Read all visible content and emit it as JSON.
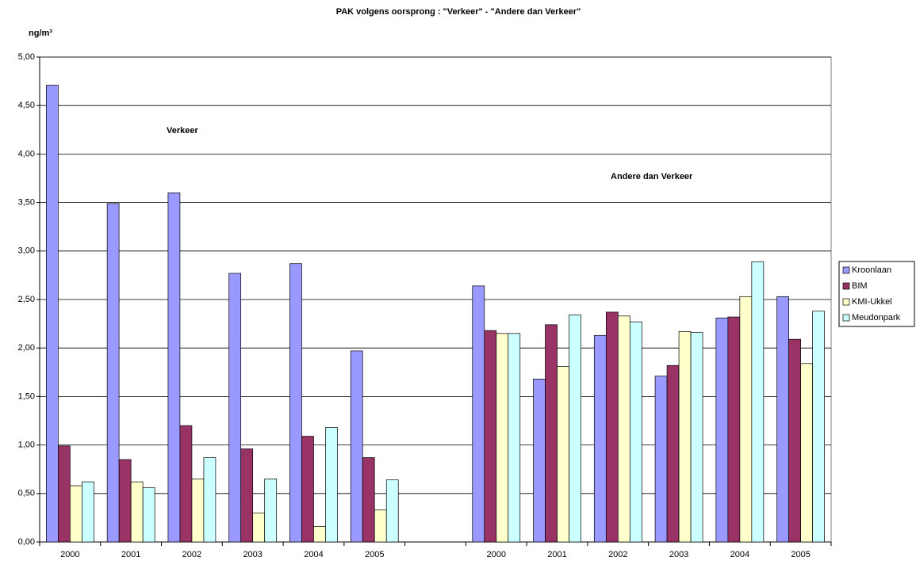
{
  "chart_data": {
    "type": "bar",
    "title": "PAK volgens oorsprong : \"Verkeer\" - \"Andere dan Verkeer\"",
    "y_label": "ng/m³",
    "annotations": [
      "Verkeer",
      "Andere dan Verkeer"
    ],
    "categories": [
      "2000",
      "2001",
      "2002",
      "2003",
      "2004",
      "2005",
      null,
      "2000",
      "2001",
      "2002",
      "2003",
      "2004",
      "2005"
    ],
    "series": [
      {
        "name": "Kroonlaan",
        "color": "#9999ff",
        "values": [
          4.71,
          3.49,
          3.6,
          2.77,
          2.87,
          1.97,
          null,
          2.64,
          1.68,
          2.13,
          1.71,
          2.31,
          2.53
        ]
      },
      {
        "name": "BIM",
        "color": "#993366",
        "values": [
          0.99,
          0.85,
          1.2,
          0.96,
          1.09,
          0.87,
          null,
          2.18,
          2.24,
          2.37,
          1.82,
          2.32,
          2.09
        ]
      },
      {
        "name": "KMI-Ukkel",
        "color": "#ffffcc",
        "values": [
          0.58,
          0.62,
          0.65,
          0.3,
          0.16,
          0.33,
          null,
          2.15,
          1.81,
          2.33,
          2.17,
          2.53,
          1.84
        ]
      },
      {
        "name": "Meudonpark",
        "color": "#ccffff",
        "values": [
          0.62,
          0.56,
          0.87,
          0.65,
          1.18,
          0.64,
          null,
          2.15,
          2.34,
          2.27,
          2.16,
          2.89,
          2.38
        ]
      }
    ],
    "ylim": [
      0,
      5
    ],
    "yticks": [
      {
        "value": 0,
        "label": "0,00"
      },
      {
        "value": 0.5,
        "label": "0,50"
      },
      {
        "value": 1,
        "label": "1,00"
      },
      {
        "value": 1.5,
        "label": "1,50"
      },
      {
        "value": 2,
        "label": "2,00"
      },
      {
        "value": 2.5,
        "label": "2,50"
      },
      {
        "value": 3,
        "label": "3,00"
      },
      {
        "value": 3.5,
        "label": "3,50"
      },
      {
        "value": 4,
        "label": "4,00"
      },
      {
        "value": 4.5,
        "label": "4,50"
      },
      {
        "value": 5,
        "label": "5,00"
      }
    ],
    "grid": true,
    "legend": "right"
  }
}
